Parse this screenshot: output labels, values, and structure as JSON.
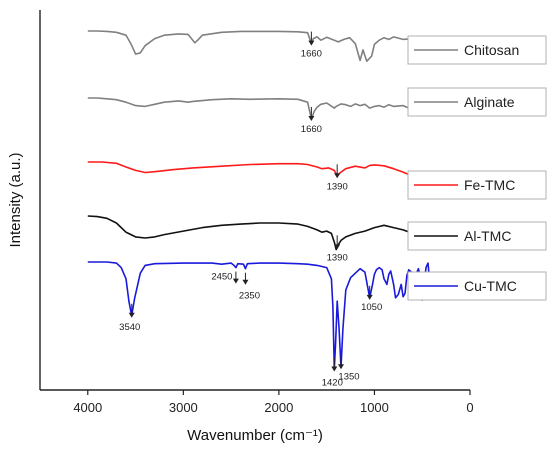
{
  "chart_data": {
    "type": "line",
    "title": "",
    "xlabel": "Wavenumber (cm⁻¹)",
    "ylabel": "Intensity (a.u.)",
    "xlim": [
      4500,
      0
    ],
    "x_ticks": [
      "4000",
      "3000",
      "2000",
      "1000",
      "0"
    ],
    "y_ticks_shown": false,
    "grid": false,
    "legend_placement": "right, one box per series",
    "series": [
      {
        "name": "Chitosan",
        "color": "#808080",
        "points": [
          [
            4000,
            100
          ],
          [
            3900,
            100
          ],
          [
            3800,
            99
          ],
          [
            3700,
            97
          ],
          [
            3600,
            90
          ],
          [
            3550,
            70
          ],
          [
            3500,
            45
          ],
          [
            3450,
            48
          ],
          [
            3400,
            65
          ],
          [
            3300,
            82
          ],
          [
            3200,
            90
          ],
          [
            3050,
            93
          ],
          [
            2950,
            92
          ],
          [
            2880,
            72
          ],
          [
            2850,
            78
          ],
          [
            2800,
            90
          ],
          [
            2600,
            97
          ],
          [
            2400,
            99
          ],
          [
            2000,
            99
          ],
          [
            1800,
            98
          ],
          [
            1700,
            96
          ],
          [
            1660,
            70
          ],
          [
            1640,
            82
          ],
          [
            1600,
            86
          ],
          [
            1560,
            78
          ],
          [
            1500,
            85
          ],
          [
            1420,
            78
          ],
          [
            1380,
            74
          ],
          [
            1320,
            80
          ],
          [
            1260,
            84
          ],
          [
            1200,
            70
          ],
          [
            1150,
            30
          ],
          [
            1120,
            55
          ],
          [
            1080,
            28
          ],
          [
            1030,
            40
          ],
          [
            1000,
            68
          ],
          [
            950,
            78
          ],
          [
            900,
            84
          ],
          [
            850,
            80
          ],
          [
            800,
            86
          ],
          [
            700,
            80
          ],
          [
            600,
            82
          ],
          [
            520,
            78
          ],
          [
            450,
            80
          ]
        ],
        "annotations": [
          {
            "x": 1660,
            "label": "1660"
          }
        ]
      },
      {
        "name": "Alginate",
        "color": "#808080",
        "points": [
          [
            4000,
            100
          ],
          [
            3900,
            100
          ],
          [
            3800,
            98
          ],
          [
            3700,
            96
          ],
          [
            3600,
            90
          ],
          [
            3500,
            82
          ],
          [
            3400,
            80
          ],
          [
            3300,
            85
          ],
          [
            3200,
            90
          ],
          [
            3050,
            93
          ],
          [
            2950,
            90
          ],
          [
            2900,
            92
          ],
          [
            2700,
            96
          ],
          [
            2500,
            98
          ],
          [
            2300,
            97
          ],
          [
            2000,
            98
          ],
          [
            1800,
            97
          ],
          [
            1700,
            90
          ],
          [
            1660,
            50
          ],
          [
            1630,
            68
          ],
          [
            1600,
            78
          ],
          [
            1560,
            85
          ],
          [
            1500,
            88
          ],
          [
            1420,
            76
          ],
          [
            1400,
            80
          ],
          [
            1350,
            86
          ],
          [
            1300,
            84
          ],
          [
            1250,
            80
          ],
          [
            1200,
            86
          ],
          [
            1150,
            82
          ],
          [
            1100,
            85
          ],
          [
            1050,
            76
          ],
          [
            1000,
            80
          ],
          [
            950,
            82
          ],
          [
            900,
            78
          ],
          [
            850,
            84
          ],
          [
            800,
            80
          ],
          [
            700,
            82
          ],
          [
            600,
            72
          ],
          [
            550,
            86
          ],
          [
            500,
            76
          ],
          [
            450,
            84
          ],
          [
            400,
            80
          ]
        ],
        "annotations": [
          {
            "x": 1660,
            "label": "1660"
          }
        ]
      },
      {
        "name": "Fe-TMC",
        "color": "#ff1a1a",
        "points": [
          [
            4000,
            100
          ],
          [
            3850,
            100
          ],
          [
            3700,
            97
          ],
          [
            3600,
            88
          ],
          [
            3500,
            80
          ],
          [
            3400,
            75
          ],
          [
            3300,
            77
          ],
          [
            3100,
            82
          ],
          [
            2900,
            86
          ],
          [
            2600,
            90
          ],
          [
            2300,
            94
          ],
          [
            2000,
            96
          ],
          [
            1800,
            96
          ],
          [
            1700,
            94
          ],
          [
            1600,
            88
          ],
          [
            1550,
            84
          ],
          [
            1480,
            86
          ],
          [
            1420,
            80
          ],
          [
            1390,
            66
          ],
          [
            1360,
            74
          ],
          [
            1300,
            84
          ],
          [
            1200,
            90
          ],
          [
            1100,
            86
          ],
          [
            1050,
            92
          ],
          [
            1000,
            93
          ],
          [
            900,
            91
          ],
          [
            800,
            84
          ],
          [
            700,
            76
          ],
          [
            600,
            66
          ],
          [
            500,
            58
          ],
          [
            450,
            46
          ],
          [
            400,
            52
          ]
        ],
        "annotations": [
          {
            "x": 1390,
            "label": "1390"
          }
        ]
      },
      {
        "name": "Al-TMC",
        "color": "#111111",
        "points": [
          [
            4000,
            100
          ],
          [
            3900,
            99
          ],
          [
            3800,
            96
          ],
          [
            3700,
            88
          ],
          [
            3600,
            72
          ],
          [
            3500,
            64
          ],
          [
            3400,
            62
          ],
          [
            3300,
            64
          ],
          [
            3200,
            68
          ],
          [
            3000,
            74
          ],
          [
            2800,
            80
          ],
          [
            2600,
            84
          ],
          [
            2400,
            86
          ],
          [
            2200,
            88
          ],
          [
            2000,
            88
          ],
          [
            1800,
            86
          ],
          [
            1700,
            82
          ],
          [
            1600,
            76
          ],
          [
            1550,
            72
          ],
          [
            1500,
            74
          ],
          [
            1450,
            70
          ],
          [
            1420,
            55
          ],
          [
            1400,
            42
          ],
          [
            1380,
            50
          ],
          [
            1350,
            58
          ],
          [
            1300,
            64
          ],
          [
            1200,
            70
          ],
          [
            1100,
            74
          ],
          [
            1000,
            80
          ],
          [
            900,
            84
          ],
          [
            800,
            80
          ],
          [
            700,
            76
          ],
          [
            600,
            70
          ],
          [
            550,
            62
          ],
          [
            500,
            60
          ],
          [
            450,
            64
          ],
          [
            420,
            76
          ],
          [
            400,
            80
          ]
        ],
        "annotations": [
          {
            "x": 1390,
            "label": "1390"
          }
        ]
      },
      {
        "name": "Cu-TMC",
        "color": "#1a1adc",
        "points": [
          [
            4000,
            100
          ],
          [
            3800,
            100
          ],
          [
            3700,
            98
          ],
          [
            3650,
            90
          ],
          [
            3600,
            70
          ],
          [
            3570,
            30
          ],
          [
            3540,
            4
          ],
          [
            3510,
            35
          ],
          [
            3450,
            80
          ],
          [
            3400,
            94
          ],
          [
            3300,
            97
          ],
          [
            3000,
            98
          ],
          [
            2700,
            98
          ],
          [
            2600,
            96
          ],
          [
            2500,
            98
          ],
          [
            2470,
            94
          ],
          [
            2450,
            90
          ],
          [
            2430,
            97
          ],
          [
            2370,
            96
          ],
          [
            2350,
            88
          ],
          [
            2330,
            97
          ],
          [
            2200,
            98
          ],
          [
            2000,
            98
          ],
          [
            1800,
            97
          ],
          [
            1700,
            96
          ],
          [
            1600,
            94
          ],
          [
            1500,
            90
          ],
          [
            1450,
            70
          ],
          [
            1435,
            20
          ],
          [
            1420,
            -92
          ],
          [
            1405,
            -40
          ],
          [
            1390,
            30
          ],
          [
            1370,
            -20
          ],
          [
            1350,
            -88
          ],
          [
            1330,
            -20
          ],
          [
            1300,
            50
          ],
          [
            1250,
            72
          ],
          [
            1200,
            80
          ],
          [
            1150,
            88
          ],
          [
            1100,
            82
          ],
          [
            1050,
            36
          ],
          [
            1020,
            60
          ],
          [
            1000,
            78
          ],
          [
            980,
            86
          ],
          [
            950,
            90
          ],
          [
            920,
            86
          ],
          [
            900,
            70
          ],
          [
            870,
            60
          ],
          [
            850,
            78
          ],
          [
            830,
            84
          ],
          [
            800,
            60
          ],
          [
            780,
            36
          ],
          [
            750,
            42
          ],
          [
            720,
            60
          ],
          [
            700,
            38
          ],
          [
            680,
            44
          ],
          [
            660,
            76
          ],
          [
            640,
            86
          ],
          [
            600,
            80
          ],
          [
            580,
            60
          ],
          [
            560,
            80
          ],
          [
            540,
            88
          ],
          [
            520,
            74
          ],
          [
            500,
            32
          ],
          [
            480,
            60
          ],
          [
            460,
            90
          ],
          [
            440,
            98
          ],
          [
            420,
            60
          ],
          [
            400,
            80
          ]
        ],
        "annotations": [
          {
            "x": 3540,
            "label": "3540"
          },
          {
            "x": 2450,
            "label": "2450"
          },
          {
            "x": 2350,
            "label": "2350"
          },
          {
            "x": 1420,
            "label": "1420"
          },
          {
            "x": 1350,
            "label": "1350"
          },
          {
            "x": 1050,
            "label": "1050"
          }
        ]
      }
    ]
  }
}
